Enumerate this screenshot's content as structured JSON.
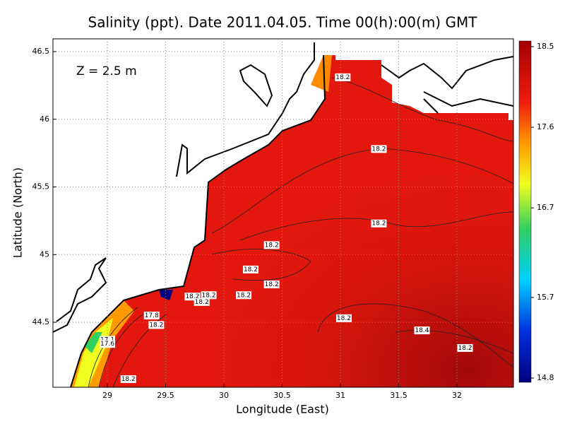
{
  "chart_data": {
    "type": "contour-map",
    "title": "Salinity (ppt). Date 2011.04.05. Time 00(h):00(m) GMT",
    "annotation": "Z = 2.5 m",
    "x_label": "Longitude (East)",
    "y_label": "Latitude (North)",
    "xlim": [
      28.533,
      32.485
    ],
    "ylim": [
      44.02,
      46.594
    ],
    "xticks": [
      29,
      29.5,
      30,
      30.5,
      31,
      31.5,
      32
    ],
    "yticks": [
      44.5,
      45,
      45.5,
      46,
      46.5
    ],
    "grid": true,
    "colorbar": {
      "lim": [
        14.8,
        18.5
      ],
      "ticks": [
        18.5,
        17.6,
        16.7,
        15.7,
        14.8
      ]
    },
    "contour_labels": [
      {
        "lon": 31.02,
        "lat": 46.31,
        "value": 18.2
      },
      {
        "lon": 31.33,
        "lat": 45.78,
        "value": 18.2
      },
      {
        "lon": 31.33,
        "lat": 45.23,
        "value": 18.2
      },
      {
        "lon": 30.41,
        "lat": 45.07,
        "value": 18.2
      },
      {
        "lon": 30.23,
        "lat": 44.89,
        "value": 18.2
      },
      {
        "lon": 30.41,
        "lat": 44.78,
        "value": 18.2
      },
      {
        "lon": 30.17,
        "lat": 44.7,
        "value": 18.2
      },
      {
        "lon": 29.73,
        "lat": 44.69,
        "value": 18.2
      },
      {
        "lon": 29.87,
        "lat": 44.7,
        "value": 18.2
      },
      {
        "lon": 29.81,
        "lat": 44.65,
        "value": 18.2
      },
      {
        "lon": 31.03,
        "lat": 44.53,
        "value": 18.2
      },
      {
        "lon": 31.7,
        "lat": 44.44,
        "value": 18.4
      },
      {
        "lon": 32.07,
        "lat": 44.31,
        "value": 18.2
      },
      {
        "lon": 29.38,
        "lat": 44.55,
        "value": 17.8
      },
      {
        "lon": 29.42,
        "lat": 44.48,
        "value": 18.2
      },
      {
        "lon": 29.0,
        "lat": 44.37,
        "value": 17.1
      },
      {
        "lon": 29.0,
        "lat": 44.34,
        "value": 17.6
      },
      {
        "lon": 29.18,
        "lat": 44.08,
        "value": 18.2
      }
    ]
  }
}
